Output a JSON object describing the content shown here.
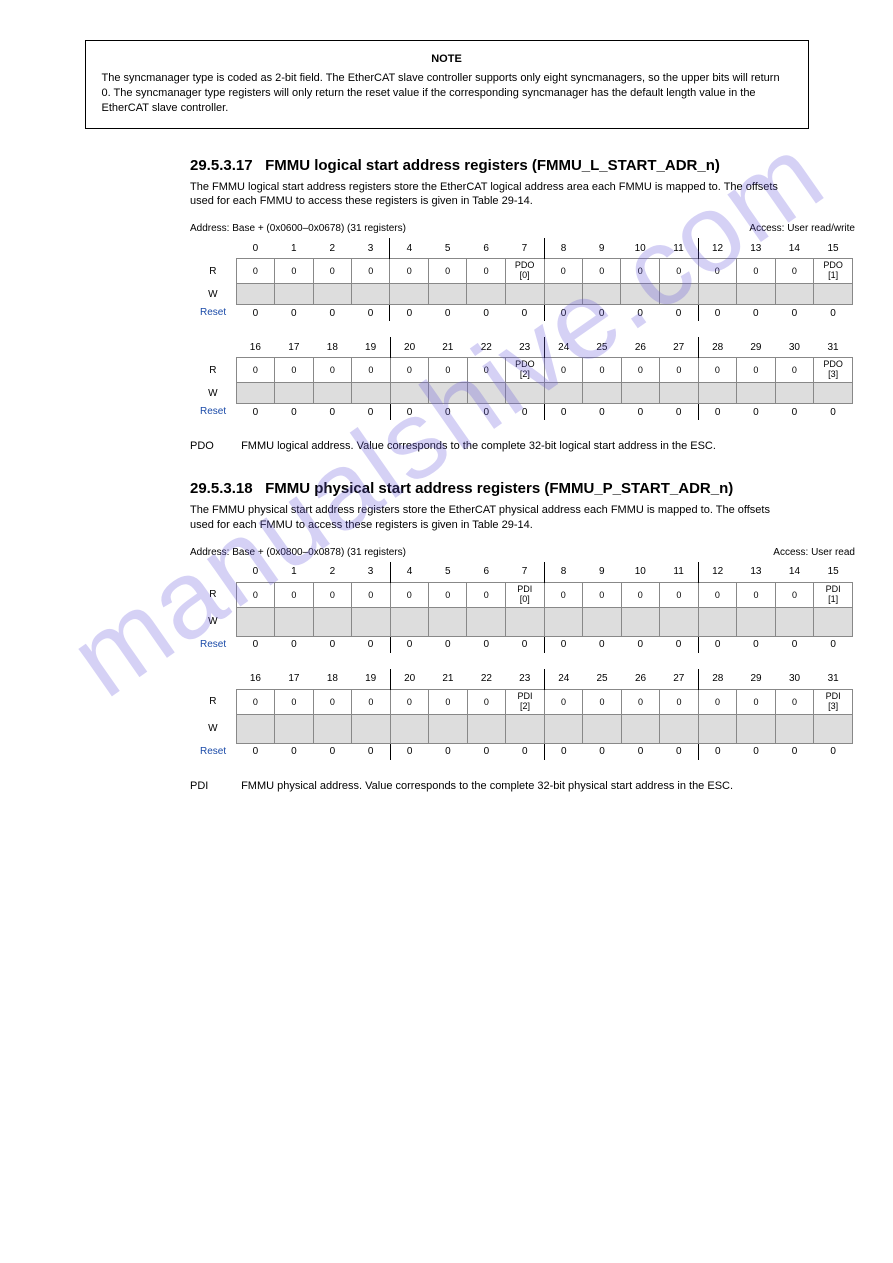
{
  "watermark": "manualshive.com",
  "note": {
    "title": "NOTE",
    "body": "The syncmanager type is coded as 2-bit field. The EtherCAT slave controller supports only eight syncmanagers, so the upper bits will return 0. The syncmanager type registers will only return the reset value if the corresponding syncmanager has the default length value in the EtherCAT slave controller."
  },
  "sec1": {
    "num": "29.5.3.17",
    "title": "FMMU logical start address registers (FMMU_L_START_ADR_n)",
    "p1": "The FMMU logical start address registers store the EtherCAT logical address area each FMMU is mapped to. The offsets used for each FMMU to access these registers is given in Table 29-14.",
    "address": "Address: Base + (0x0600–0x0678) (31 registers)",
    "access": "Access: User read/write"
  },
  "sec2": {
    "num": "29.5.3.18",
    "title": "FMMU physical start address registers (FMMU_P_START_ADR_n)",
    "p1": "The FMMU physical start address registers store the EtherCAT physical address each FMMU is mapped to. The offsets used for each FMMU to access these registers is given in Table 29-14.",
    "address": "Address: Base + (0x0800–0x0878) (31 registers)",
    "access": "Access: User read"
  },
  "table1": {
    "row1": {
      "bits": [
        "0",
        "1",
        "2",
        "3",
        "4",
        "5",
        "6",
        "7",
        "8",
        "9",
        "10",
        "11",
        "12",
        "13",
        "14",
        "15"
      ],
      "r": [
        "0",
        "0",
        "0",
        "0",
        "0",
        "0",
        "0",
        "PDO\n[0]",
        "0",
        "0",
        "0",
        "0",
        "0",
        "0",
        "0",
        "PDO\n[1]"
      ],
      "reset": [
        "0",
        "0",
        "0",
        "0",
        "0",
        "0",
        "0",
        "0",
        "0",
        "0",
        "0",
        "0",
        "0",
        "0",
        "0",
        "0"
      ]
    },
    "row2": {
      "bits": [
        "16",
        "17",
        "18",
        "19",
        "20",
        "21",
        "22",
        "23",
        "24",
        "25",
        "26",
        "27",
        "28",
        "29",
        "30",
        "31"
      ],
      "r": [
        "0",
        "0",
        "0",
        "0",
        "0",
        "0",
        "0",
        "PDO\n[2]",
        "0",
        "0",
        "0",
        "0",
        "0",
        "0",
        "0",
        "PDO\n[3]"
      ],
      "reset": [
        "0",
        "0",
        "0",
        "0",
        "0",
        "0",
        "0",
        "0",
        "0",
        "0",
        "0",
        "0",
        "0",
        "0",
        "0",
        "0"
      ]
    }
  },
  "table2": {
    "row1": {
      "bits": [
        "0",
        "1",
        "2",
        "3",
        "4",
        "5",
        "6",
        "7",
        "8",
        "9",
        "10",
        "11",
        "12",
        "13",
        "14",
        "15"
      ],
      "r": [
        "0",
        "0",
        "0",
        "0",
        "0",
        "0",
        "0",
        "PDI\n[0]",
        "0",
        "0",
        "0",
        "0",
        "0",
        "0",
        "0",
        "PDI\n[1]"
      ],
      "reset": [
        "0",
        "0",
        "0",
        "0",
        "0",
        "0",
        "0",
        "0",
        "0",
        "0",
        "0",
        "0",
        "0",
        "0",
        "0",
        "0"
      ]
    },
    "row2": {
      "bits": [
        "16",
        "17",
        "18",
        "19",
        "20",
        "21",
        "22",
        "23",
        "24",
        "25",
        "26",
        "27",
        "28",
        "29",
        "30",
        "31"
      ],
      "r": [
        "0",
        "0",
        "0",
        "0",
        "0",
        "0",
        "0",
        "PDI\n[2]",
        "0",
        "0",
        "0",
        "0",
        "0",
        "0",
        "0",
        "PDI\n[3]"
      ],
      "reset": [
        "0",
        "0",
        "0",
        "0",
        "0",
        "0",
        "0",
        "0",
        "0",
        "0",
        "0",
        "0",
        "0",
        "0",
        "0",
        "0"
      ]
    }
  },
  "field1": {
    "name": "PDO",
    "desc": "FMMU logical address. Value corresponds to the complete 32-bit logical start address in the ESC."
  },
  "field2": {
    "name": "PDI",
    "desc": "FMMU physical address. Value corresponds to the complete 32-bit physical start address in the ESC."
  },
  "labels": {
    "R": "R",
    "W": "W",
    "Reset": "Reset"
  },
  "colors": {
    "grey": "#dddddd",
    "border": "#888888",
    "link": "#1a4aa8",
    "wm": "rgba(105,90,220,0.28)"
  }
}
